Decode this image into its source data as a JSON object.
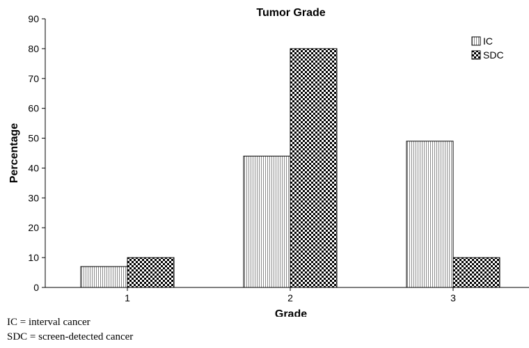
{
  "chart_data": {
    "type": "bar",
    "title": "Tumor Grade",
    "xlabel": "Grade",
    "ylabel": "Percentage",
    "categories": [
      "1",
      "2",
      "3"
    ],
    "series": [
      {
        "name": "IC",
        "values": [
          7,
          44,
          49
        ],
        "pattern": "vertical-stripes"
      },
      {
        "name": "SDC",
        "values": [
          10,
          80,
          10
        ],
        "pattern": "checkerboard"
      }
    ],
    "ylim": [
      0,
      90
    ],
    "yticks": [
      0,
      10,
      20,
      30,
      40,
      50,
      60,
      70,
      80,
      90
    ],
    "grid": false,
    "legend": "top-right"
  },
  "footnotes": [
    "IC = interval cancer",
    "SDC = screen-detected cancer"
  ]
}
